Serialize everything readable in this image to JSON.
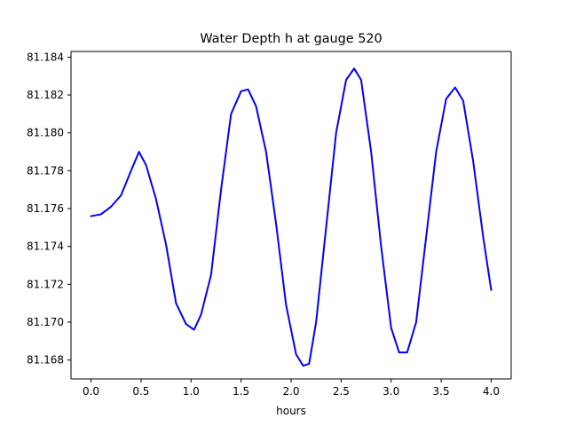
{
  "chart_data": {
    "type": "line",
    "title": "Water Depth h at gauge 520",
    "xlabel": "hours",
    "ylabel": "",
    "xlim": [
      -0.2,
      4.2
    ],
    "ylim": [
      81.167,
      81.1843
    ],
    "xticks": [
      0.0,
      0.5,
      1.0,
      1.5,
      2.0,
      2.5,
      3.0,
      3.5,
      4.0
    ],
    "xtick_labels": [
      "0.0",
      "0.5",
      "1.0",
      "1.5",
      "2.0",
      "2.5",
      "3.0",
      "3.5",
      "4.0"
    ],
    "yticks": [
      81.168,
      81.17,
      81.172,
      81.174,
      81.176,
      81.178,
      81.18,
      81.182,
      81.184
    ],
    "ytick_labels": [
      "81.168",
      "81.170",
      "81.172",
      "81.174",
      "81.176",
      "81.178",
      "81.180",
      "81.182",
      "81.184"
    ],
    "grid": false,
    "legend": "none",
    "series": [
      {
        "color": "#0000ff",
        "x": [
          0.0,
          0.1,
          0.2,
          0.3,
          0.4,
          0.48,
          0.55,
          0.65,
          0.75,
          0.85,
          0.95,
          1.03,
          1.1,
          1.2,
          1.3,
          1.4,
          1.5,
          1.57,
          1.65,
          1.75,
          1.85,
          1.95,
          2.05,
          2.12,
          2.18,
          2.25,
          2.35,
          2.45,
          2.55,
          2.63,
          2.7,
          2.8,
          2.9,
          3.0,
          3.08,
          3.16,
          3.25,
          3.35,
          3.45,
          3.55,
          3.64,
          3.72,
          3.82,
          3.92,
          4.0
        ],
        "y": [
          81.1756,
          81.1757,
          81.1761,
          81.1767,
          81.178,
          81.179,
          81.1783,
          81.1765,
          81.1741,
          81.171,
          81.1699,
          81.1696,
          81.1704,
          81.1725,
          81.177,
          81.181,
          81.1822,
          81.1823,
          81.1814,
          81.179,
          81.1752,
          81.1709,
          81.1683,
          81.1677,
          81.1678,
          81.17,
          81.175,
          81.18,
          81.1828,
          81.1834,
          81.1828,
          81.179,
          81.174,
          81.1697,
          81.1684,
          81.1684,
          81.17,
          81.1745,
          81.179,
          81.1818,
          81.1824,
          81.1817,
          81.1785,
          81.1745,
          81.1717
        ]
      }
    ]
  }
}
